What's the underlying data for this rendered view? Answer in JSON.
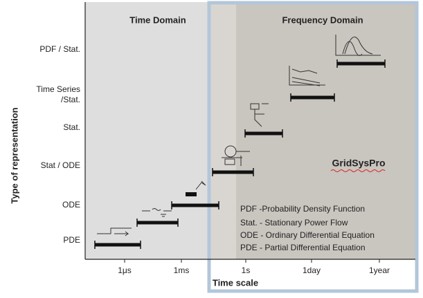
{
  "y_axis": {
    "title": "Type of representation",
    "labels": [
      "PDF / Stat.",
      "Time Series",
      "/Stat.",
      "Stat.",
      "Stat / ODE",
      "ODE",
      "PDE"
    ]
  },
  "x_axis": {
    "title": "Time scale",
    "labels": [
      "1μs",
      "1ms",
      "1s",
      "1day",
      "1year"
    ]
  },
  "regions": [
    "Time Domain",
    "Frequency Domain"
  ],
  "brand": "GridSysPro",
  "legend": [
    "PDF -Probability Density Function",
    "Stat. - Stationary Power Flow",
    "ODE - Ordinary Differential Equation",
    "PDE - Partial Differential Equation"
  ]
}
